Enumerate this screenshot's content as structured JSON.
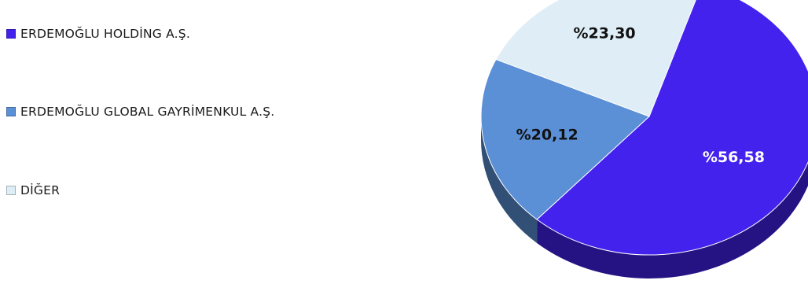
{
  "chart_data": {
    "type": "pie",
    "categories": [
      "ERDEMOĞLU HOLDİNG A.Ş.",
      "ERDEMOĞLU GLOBAL GAYRİMENKUL A.Ş.",
      "DİĞER"
    ],
    "values": [
      56.58,
      20.12,
      23.3
    ],
    "labels": [
      "%56,58",
      "%20,12",
      "%23,30"
    ],
    "colors": [
      "#4422ee",
      "#5b8fd6",
      "#deedf6"
    ],
    "label_colors": [
      "#ffffff",
      "#111111",
      "#111111"
    ],
    "legend_position": "left",
    "style": "3d"
  }
}
